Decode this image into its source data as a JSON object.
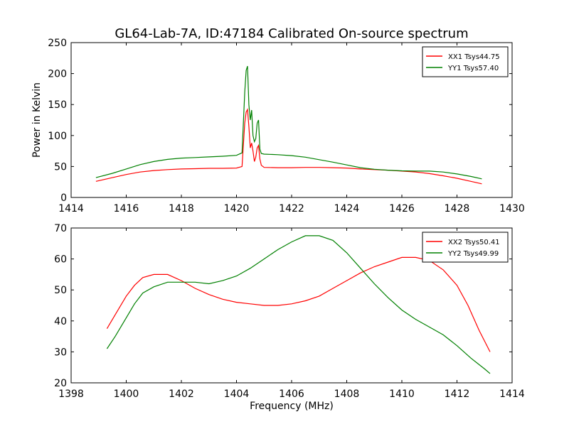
{
  "figure": {
    "title": "GL64-Lab-7A, ID:47184 Calibrated On-source spectrum",
    "xlabel": "Frequency (MHz)"
  },
  "chart_data": [
    {
      "type": "line",
      "title": "GL64-Lab-7A, ID:47184 Calibrated On-source spectrum",
      "xlabel": "",
      "ylabel": "Power in Kelvin",
      "xlim": [
        1414,
        1430
      ],
      "ylim": [
        0,
        250
      ],
      "xticks": [
        1414,
        1416,
        1418,
        1420,
        1422,
        1424,
        1426,
        1428,
        1430
      ],
      "yticks": [
        0,
        50,
        100,
        150,
        200,
        250
      ],
      "legend_position": "top-right",
      "grid": false,
      "series": [
        {
          "name": "XX1 Tsys44.75",
          "color": "#ff0000",
          "points": [
            [
              1414.9,
              26
            ],
            [
              1415.5,
              32
            ],
            [
              1416.0,
              37
            ],
            [
              1416.5,
              41
            ],
            [
              1417.0,
              43.5
            ],
            [
              1417.5,
              45
            ],
            [
              1418.0,
              46
            ],
            [
              1418.5,
              46.5
            ],
            [
              1419.0,
              47
            ],
            [
              1419.5,
              47
            ],
            [
              1420.0,
              47.5
            ],
            [
              1420.2,
              50
            ],
            [
              1420.3,
              120
            ],
            [
              1420.35,
              138
            ],
            [
              1420.4,
              142
            ],
            [
              1420.45,
              115
            ],
            [
              1420.5,
              80
            ],
            [
              1420.55,
              88
            ],
            [
              1420.6,
              75
            ],
            [
              1420.65,
              58
            ],
            [
              1420.7,
              65
            ],
            [
              1420.75,
              80
            ],
            [
              1420.8,
              84
            ],
            [
              1420.85,
              62
            ],
            [
              1420.9,
              52
            ],
            [
              1421.0,
              48.5
            ],
            [
              1421.5,
              48
            ],
            [
              1422.0,
              48
            ],
            [
              1422.5,
              48.5
            ],
            [
              1423.0,
              48.5
            ],
            [
              1423.5,
              48
            ],
            [
              1424.0,
              47.5
            ],
            [
              1424.5,
              46
            ],
            [
              1425.0,
              45
            ],
            [
              1425.5,
              44
            ],
            [
              1426.0,
              42.5
            ],
            [
              1426.5,
              41
            ],
            [
              1427.0,
              38.5
            ],
            [
              1427.5,
              35
            ],
            [
              1428.0,
              31
            ],
            [
              1428.5,
              26
            ],
            [
              1428.9,
              22
            ]
          ]
        },
        {
          "name": "YY1 Tsys57.40",
          "color": "#008000",
          "points": [
            [
              1414.9,
              32
            ],
            [
              1415.5,
              39
            ],
            [
              1416.0,
              46
            ],
            [
              1416.5,
              53
            ],
            [
              1417.0,
              58
            ],
            [
              1417.5,
              61.5
            ],
            [
              1418.0,
              63.5
            ],
            [
              1418.5,
              64.5
            ],
            [
              1419.0,
              65.5
            ],
            [
              1419.5,
              66.5
            ],
            [
              1420.0,
              68
            ],
            [
              1420.2,
              72
            ],
            [
              1420.3,
              170
            ],
            [
              1420.35,
              205
            ],
            [
              1420.4,
              212
            ],
            [
              1420.45,
              150
            ],
            [
              1420.5,
              125
            ],
            [
              1420.55,
              141
            ],
            [
              1420.6,
              100
            ],
            [
              1420.65,
              90
            ],
            [
              1420.7,
              95
            ],
            [
              1420.75,
              120
            ],
            [
              1420.8,
              125
            ],
            [
              1420.85,
              78
            ],
            [
              1420.9,
              71
            ],
            [
              1421.0,
              70
            ],
            [
              1421.5,
              69
            ],
            [
              1422.0,
              67.5
            ],
            [
              1422.5,
              65
            ],
            [
              1423.0,
              61
            ],
            [
              1423.5,
              57
            ],
            [
              1424.0,
              52.5
            ],
            [
              1424.5,
              48
            ],
            [
              1425.0,
              45.5
            ],
            [
              1425.5,
              44
            ],
            [
              1426.0,
              43
            ],
            [
              1426.5,
              42.5
            ],
            [
              1427.0,
              42.5
            ],
            [
              1427.5,
              41
            ],
            [
              1428.0,
              38
            ],
            [
              1428.5,
              34
            ],
            [
              1428.9,
              30
            ]
          ]
        }
      ]
    },
    {
      "type": "line",
      "title": "",
      "xlabel": "Frequency (MHz)",
      "ylabel": "",
      "xlim": [
        1398,
        1414
      ],
      "ylim": [
        20,
        70
      ],
      "xticks": [
        1398,
        1400,
        1402,
        1404,
        1406,
        1408,
        1410,
        1412,
        1414
      ],
      "yticks": [
        20,
        30,
        40,
        50,
        60,
        70
      ],
      "legend_position": "top-right",
      "grid": false,
      "series": [
        {
          "name": "XX2 Tsys50.41",
          "color": "#ff0000",
          "points": [
            [
              1399.3,
              37.5
            ],
            [
              1399.6,
              42
            ],
            [
              1400.0,
              48
            ],
            [
              1400.3,
              51.5
            ],
            [
              1400.6,
              54
            ],
            [
              1401.0,
              55
            ],
            [
              1401.5,
              55
            ],
            [
              1402.0,
              53
            ],
            [
              1402.5,
              50.5
            ],
            [
              1403.0,
              48.5
            ],
            [
              1403.5,
              47
            ],
            [
              1404.0,
              46
            ],
            [
              1404.5,
              45.5
            ],
            [
              1405.0,
              45
            ],
            [
              1405.5,
              45
            ],
            [
              1406.0,
              45.5
            ],
            [
              1406.5,
              46.5
            ],
            [
              1407.0,
              48
            ],
            [
              1407.5,
              50.5
            ],
            [
              1408.0,
              53
            ],
            [
              1408.5,
              55.5
            ],
            [
              1409.0,
              57.5
            ],
            [
              1409.5,
              59
            ],
            [
              1410.0,
              60.5
            ],
            [
              1410.5,
              60.5
            ],
            [
              1411.0,
              59.5
            ],
            [
              1411.5,
              56.5
            ],
            [
              1412.0,
              51.5
            ],
            [
              1412.4,
              45
            ],
            [
              1412.8,
              37
            ],
            [
              1413.2,
              30
            ]
          ]
        },
        {
          "name": "YY2 Tsys49.99",
          "color": "#008000",
          "points": [
            [
              1399.3,
              31
            ],
            [
              1399.6,
              35
            ],
            [
              1400.0,
              41
            ],
            [
              1400.3,
              45.5
            ],
            [
              1400.6,
              49
            ],
            [
              1401.0,
              51
            ],
            [
              1401.5,
              52.5
            ],
            [
              1402.0,
              52.5
            ],
            [
              1402.5,
              52.5
            ],
            [
              1403.0,
              52
            ],
            [
              1403.5,
              53
            ],
            [
              1404.0,
              54.5
            ],
            [
              1404.5,
              57
            ],
            [
              1405.0,
              60
            ],
            [
              1405.5,
              63
            ],
            [
              1406.0,
              65.5
            ],
            [
              1406.5,
              67.5
            ],
            [
              1407.0,
              67.5
            ],
            [
              1407.5,
              66
            ],
            [
              1408.0,
              62
            ],
            [
              1408.5,
              57
            ],
            [
              1409.0,
              52
            ],
            [
              1409.5,
              47.5
            ],
            [
              1410.0,
              43.5
            ],
            [
              1410.5,
              40.5
            ],
            [
              1411.0,
              38
            ],
            [
              1411.5,
              35.5
            ],
            [
              1412.0,
              32
            ],
            [
              1412.5,
              28
            ],
            [
              1413.0,
              24.5
            ],
            [
              1413.2,
              23
            ]
          ]
        }
      ]
    }
  ]
}
